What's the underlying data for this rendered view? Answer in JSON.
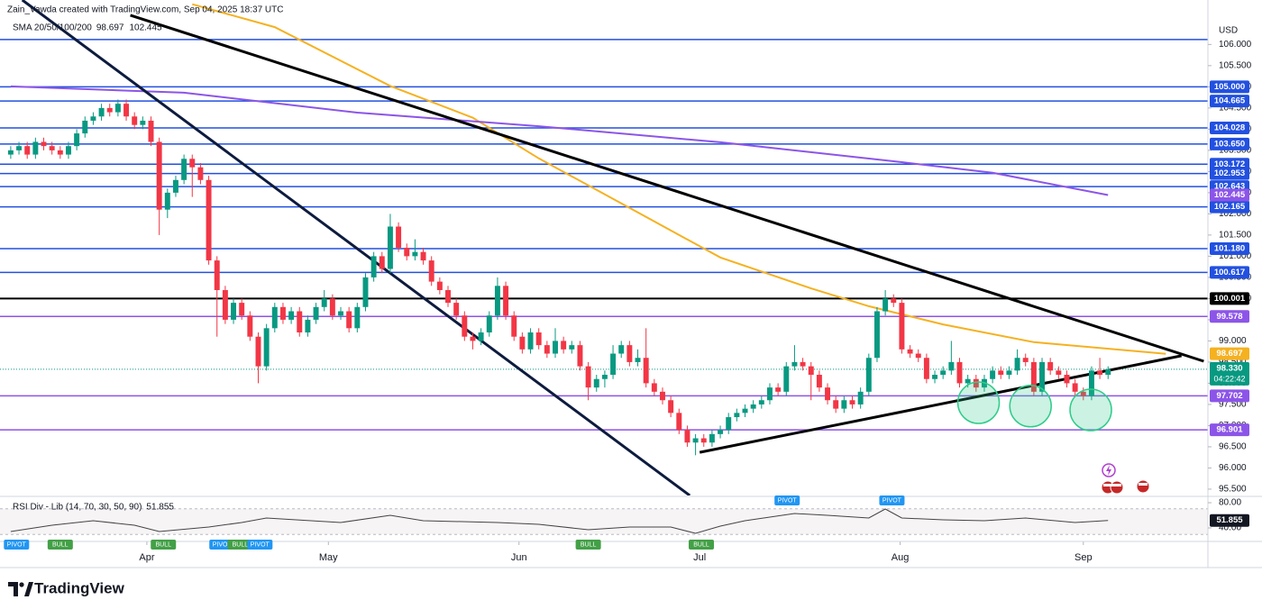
{
  "chart_data": {
    "type": "candlestick",
    "attribution": "Zain_Vawda created with TradingView.com, Sep 04, 2025 18:37 UTC",
    "currency": "USD",
    "brand": "TradingView",
    "xlim": [
      -1.3,
      145.1
    ],
    "ylim": [
      95.35,
      107.05
    ],
    "xticks": [
      {
        "value": 16.5,
        "label": "Apr"
      },
      {
        "value": 38.5,
        "label": "May"
      },
      {
        "value": 61.6,
        "label": "Jun"
      },
      {
        "value": 83.5,
        "label": "Jul"
      },
      {
        "value": 107.8,
        "label": "Aug"
      },
      {
        "value": 130,
        "label": "Sep"
      }
    ],
    "yticks": [
      {
        "value": 95.5,
        "label": "95.500"
      },
      {
        "value": 96,
        "label": "96.000"
      },
      {
        "value": 96.5,
        "label": "96.500"
      },
      {
        "value": 97,
        "label": "97.000"
      },
      {
        "value": 97.5,
        "label": "97.500"
      },
      {
        "value": 98,
        "label": "98.000"
      },
      {
        "value": 98.5,
        "label": "98.500"
      },
      {
        "value": 99,
        "label": "99.000"
      },
      {
        "value": 99.5,
        "label": "99.500"
      },
      {
        "value": 100,
        "label": "100.000"
      },
      {
        "value": 100.5,
        "label": "100.500"
      },
      {
        "value": 101,
        "label": "101.000"
      },
      {
        "value": 101.5,
        "label": "101.500"
      },
      {
        "value": 102,
        "label": "102.000"
      },
      {
        "value": 102.5,
        "label": "102.500"
      },
      {
        "value": 103,
        "label": "103.000"
      },
      {
        "value": 103.5,
        "label": "103.500"
      },
      {
        "value": 104,
        "label": "104.000"
      },
      {
        "value": 104.5,
        "label": "104.500"
      },
      {
        "value": 105,
        "label": "105.000"
      },
      {
        "value": 105.5,
        "label": "105.500"
      },
      {
        "value": 106,
        "label": "106.000"
      }
    ],
    "up_color": "#089981",
    "down_color": "#f23645",
    "candles": {
      "open": [
        103.4,
        103.5,
        103.6,
        103.4,
        103.7,
        103.6,
        103.5,
        103.4,
        103.6,
        103.9,
        104.2,
        104.3,
        104.5,
        104.4,
        104.6,
        104.3,
        104.1,
        104.2,
        103.7,
        102.1,
        102.5,
        102.8,
        103.3,
        103.1,
        102.8,
        100.9,
        100.2,
        99.5,
        99.9,
        99.6,
        99.1,
        98.4,
        99.3,
        99.8,
        99.5,
        99.7,
        99.2,
        99.5,
        99.8,
        100.0,
        99.6,
        99.7,
        99.3,
        99.8,
        100.5,
        101.0,
        100.7,
        101.7,
        101.2,
        101.0,
        101.1,
        100.9,
        100.4,
        100.2,
        99.9,
        99.6,
        99.1,
        99.0,
        99.2,
        99.6,
        100.3,
        99.6,
        99.1,
        98.8,
        99.2,
        98.9,
        98.7,
        99.0,
        98.8,
        98.9,
        98.4,
        97.9,
        98.1,
        98.2,
        98.7,
        98.9,
        98.5,
        98.6,
        98.0,
        97.8,
        97.6,
        97.3,
        96.9,
        96.6,
        96.7,
        96.6,
        96.8,
        96.9,
        97.2,
        97.3,
        97.4,
        97.5,
        97.6,
        97.9,
        97.8,
        98.4,
        98.5,
        98.4,
        98.2,
        97.9,
        97.6,
        97.4,
        97.6,
        97.5,
        97.8,
        98.6,
        99.7,
        100.0,
        99.9,
        98.8,
        98.7,
        98.6,
        98.1,
        98.2,
        98.3,
        98.5,
        98.0,
        98.1,
        97.9,
        98.1,
        98.3,
        98.2,
        98.3,
        98.6,
        98.5,
        97.8,
        98.5,
        98.3,
        98.2,
        98.0,
        97.8,
        97.7,
        98.3,
        98.2
      ],
      "high": [
        103.6,
        103.7,
        103.7,
        103.8,
        103.8,
        103.7,
        103.6,
        103.7,
        104.0,
        104.3,
        104.4,
        104.6,
        104.6,
        104.7,
        104.7,
        104.4,
        104.3,
        104.3,
        103.8,
        102.6,
        102.9,
        103.4,
        103.4,
        103.2,
        102.9,
        101.0,
        100.3,
        100.0,
        100.0,
        99.7,
        99.2,
        99.4,
        99.9,
        99.9,
        99.8,
        99.8,
        99.6,
        99.9,
        100.2,
        100.1,
        99.8,
        99.8,
        99.9,
        100.6,
        101.1,
        101.1,
        102.0,
        101.8,
        101.3,
        101.4,
        101.2,
        101.0,
        100.5,
        100.3,
        100.0,
        99.7,
        99.2,
        99.3,
        99.7,
        100.5,
        100.4,
        99.7,
        99.2,
        99.3,
        99.3,
        99.0,
        99.3,
        99.1,
        99.0,
        99.0,
        98.5,
        98.2,
        98.3,
        98.9,
        99.0,
        99.0,
        98.8,
        99.3,
        98.1,
        97.9,
        97.7,
        97.4,
        97.0,
        96.8,
        96.8,
        96.9,
        97.0,
        97.3,
        97.4,
        97.5,
        97.6,
        97.7,
        98.0,
        98.0,
        98.5,
        98.9,
        98.6,
        98.5,
        98.3,
        98.0,
        97.7,
        97.7,
        97.7,
        97.9,
        98.7,
        99.8,
        100.2,
        100.1,
        100.0,
        98.9,
        98.8,
        98.7,
        98.3,
        98.4,
        99.0,
        98.6,
        98.2,
        98.2,
        98.2,
        98.4,
        98.4,
        98.4,
        98.8,
        98.7,
        98.6,
        98.6,
        98.6,
        98.4,
        98.3,
        98.1,
        97.9,
        98.4,
        98.6,
        98.4
      ],
      "low": [
        103.3,
        103.4,
        103.3,
        103.3,
        103.5,
        103.4,
        103.3,
        103.3,
        103.5,
        103.8,
        104.1,
        104.2,
        104.3,
        104.3,
        104.2,
        104.0,
        104.0,
        103.6,
        101.5,
        101.9,
        102.4,
        102.7,
        102.4,
        102.7,
        100.8,
        99.1,
        99.4,
        99.4,
        99.5,
        99.0,
        98.0,
        98.3,
        99.2,
        99.4,
        99.4,
        99.1,
        99.1,
        99.4,
        99.7,
        99.5,
        99.5,
        99.2,
        99.2,
        99.7,
        100.4,
        100.6,
        100.6,
        101.1,
        100.9,
        100.9,
        100.8,
        100.3,
        100.1,
        99.8,
        99.5,
        99.0,
        98.8,
        98.9,
        99.1,
        99.5,
        99.5,
        99.0,
        98.7,
        98.7,
        98.8,
        98.6,
        98.6,
        98.7,
        98.7,
        98.3,
        97.6,
        97.8,
        97.9,
        98.1,
        98.6,
        98.4,
        98.4,
        97.9,
        97.7,
        97.5,
        97.2,
        96.8,
        96.5,
        96.3,
        96.5,
        96.5,
        96.7,
        96.8,
        97.1,
        97.2,
        97.3,
        97.4,
        97.5,
        97.7,
        97.7,
        98.3,
        98.3,
        97.6,
        97.8,
        97.5,
        97.3,
        97.3,
        97.4,
        97.4,
        97.7,
        98.5,
        99.6,
        99.8,
        98.7,
        98.6,
        98.5,
        98.0,
        98.0,
        98.1,
        98.2,
        97.9,
        97.9,
        97.8,
        97.8,
        98.0,
        98.1,
        98.1,
        98.2,
        98.4,
        97.7,
        97.7,
        98.2,
        98.1,
        97.9,
        97.7,
        97.6,
        97.6,
        98.1,
        98.1
      ],
      "close": [
        103.5,
        103.6,
        103.4,
        103.7,
        103.6,
        103.5,
        103.4,
        103.6,
        103.9,
        104.2,
        104.3,
        104.5,
        104.4,
        104.6,
        104.3,
        104.1,
        104.2,
        103.7,
        102.1,
        102.5,
        102.8,
        103.3,
        103.1,
        102.8,
        100.9,
        100.2,
        99.5,
        99.9,
        99.6,
        99.1,
        98.4,
        99.3,
        99.8,
        99.5,
        99.7,
        99.2,
        99.5,
        99.8,
        100.0,
        99.6,
        99.7,
        99.3,
        99.8,
        100.5,
        101.0,
        100.7,
        101.7,
        101.2,
        101.0,
        101.1,
        100.9,
        100.4,
        100.2,
        99.9,
        99.6,
        99.1,
        99.0,
        99.2,
        99.6,
        100.3,
        99.6,
        99.1,
        98.8,
        99.2,
        98.9,
        98.7,
        99.0,
        98.8,
        98.9,
        98.4,
        97.9,
        98.1,
        98.2,
        98.7,
        98.9,
        98.5,
        98.6,
        98.0,
        97.8,
        97.6,
        97.3,
        96.9,
        96.6,
        96.7,
        96.6,
        96.8,
        96.9,
        97.2,
        97.3,
        97.4,
        97.5,
        97.6,
        97.9,
        97.8,
        98.4,
        98.5,
        98.4,
        98.2,
        97.9,
        97.6,
        97.4,
        97.6,
        97.5,
        97.8,
        98.6,
        99.7,
        100.0,
        99.9,
        98.8,
        98.7,
        98.6,
        98.1,
        98.2,
        98.3,
        98.5,
        98.0,
        98.1,
        97.9,
        98.1,
        98.3,
        98.2,
        98.3,
        98.6,
        98.5,
        97.8,
        98.5,
        98.3,
        98.2,
        98.0,
        97.8,
        97.7,
        98.3,
        98.2,
        98.33
      ]
    },
    "last_price": {
      "value": 98.33,
      "label": "98.330",
      "countdown": "04:22:42",
      "color": "#089981"
    },
    "indicator_label": "SMA 20/50/100/200",
    "series": [
      {
        "color": "#f5b120",
        "last": 98.697,
        "x": [
          22,
          32,
          46,
          56,
          64,
          75,
          86,
          97,
          104,
          113,
          124,
          140
        ],
        "values": [
          106.95,
          106.41,
          105.02,
          104.27,
          103.31,
          102.14,
          100.97,
          100.24,
          99.82,
          99.39,
          98.97,
          98.697
        ]
      },
      {
        "color": "#8c55e8",
        "last": 102.445,
        "x": [
          0,
          21,
          42,
          64,
          86,
          108,
          119,
          133
        ],
        "values": [
          105.01,
          104.86,
          104.39,
          104.07,
          103.69,
          103.22,
          102.97,
          102.445
        ]
      }
    ],
    "levels": [
      {
        "value": 106.117,
        "color": "#2250e0"
      },
      {
        "value": 105.0,
        "label": "105.000",
        "color": "#2250e0"
      },
      {
        "value": 104.665,
        "label": "104.665",
        "color": "#2250e0"
      },
      {
        "value": 104.028,
        "label": "104.028",
        "color": "#2250e0"
      },
      {
        "value": 103.65,
        "label": "103.650",
        "color": "#2250e0"
      },
      {
        "value": 103.172,
        "label": "103.172",
        "color": "#2250e0"
      },
      {
        "value": 102.953,
        "label": "102.953",
        "color": "#2250e0"
      },
      {
        "value": 102.643,
        "label": "102.643",
        "color": "#2250e0"
      },
      {
        "value": 102.165,
        "label": "102.165",
        "color": "#2250e0"
      },
      {
        "value": 101.18,
        "label": "101.180",
        "color": "#2250e0"
      },
      {
        "value": 100.617,
        "label": "100.617",
        "color": "#2250e0"
      },
      {
        "value": 100.001,
        "label": "100.001",
        "color": "#000000"
      },
      {
        "value": 99.578,
        "label": "99.578",
        "color": "#8c55e8"
      },
      {
        "value": 97.702,
        "label": "97.702",
        "color": "#8c55e8"
      },
      {
        "value": 96.901,
        "label": "96.901",
        "color": "#8c55e8"
      }
    ],
    "trendlines": [
      {
        "color": "#0d1b3e",
        "x": [
          1.4,
          82.3
        ],
        "values": [
          107.05,
          95.35
        ]
      },
      {
        "color": "#000000",
        "x": [
          14.5,
          144.6
        ],
        "values": [
          106.69,
          98.52
        ]
      },
      {
        "color": "#000000",
        "x": [
          83.5,
          141.9
        ],
        "values": [
          96.37,
          98.65
        ]
      }
    ],
    "highlights": {
      "color": "#2ecc8a",
      "x": [
        117.3,
        123.6,
        130.9
      ],
      "values": [
        97.54,
        97.46,
        97.37
      ]
    },
    "rsi": {
      "label": "RSI Div - Lib (14, 70, 30, 50, 90)",
      "last": 51.855,
      "ylim": [
        20,
        88.6
      ],
      "yticks": [
        {
          "value": 80,
          "label": "80.00"
        },
        {
          "value": 40,
          "label": "40.00"
        }
      ],
      "bands": [
        70,
        30
      ],
      "color": "#444444",
      "x": [
        0,
        5,
        10,
        15,
        18,
        24,
        28,
        31,
        40,
        46,
        50,
        59,
        64,
        70,
        75,
        80,
        83,
        86,
        89,
        95,
        99,
        104,
        106,
        108,
        113,
        118,
        123,
        129,
        133
      ],
      "values": [
        34.3,
        44.3,
        51.4,
        44.3,
        34.3,
        41.4,
        48.6,
        55.7,
        48.6,
        60,
        51.4,
        48.6,
        45.7,
        37.1,
        41.4,
        41.4,
        31.4,
        42.9,
        51.4,
        62.9,
        60,
        55.7,
        70,
        55.7,
        52.9,
        51.4,
        55.7,
        48.6,
        51.855
      ],
      "signals": [
        {
          "x": 0.7,
          "label": "PIVOT",
          "side": "low",
          "color": "#2196f3"
        },
        {
          "x": 6,
          "label": "BULL",
          "side": "low",
          "color": "#43a047"
        },
        {
          "x": 18.5,
          "label": "BULL",
          "side": "low",
          "color": "#43a047"
        },
        {
          "x": 25.6,
          "label": "PIVOT",
          "side": "low",
          "color": "#2196f3"
        },
        {
          "x": 27.8,
          "label": "BULL",
          "side": "low",
          "color": "#43a047"
        },
        {
          "x": 30.2,
          "label": "PIVOT",
          "side": "low",
          "color": "#2196f3"
        },
        {
          "x": 70,
          "label": "BULL",
          "side": "low",
          "color": "#43a047"
        },
        {
          "x": 83.7,
          "label": "BULL",
          "side": "low",
          "color": "#43a047"
        },
        {
          "x": 94.1,
          "label": "PIVOT",
          "side": "high",
          "color": "#2196f3"
        },
        {
          "x": 106.8,
          "label": "PIVOT",
          "side": "high",
          "color": "#2196f3"
        }
      ]
    }
  }
}
